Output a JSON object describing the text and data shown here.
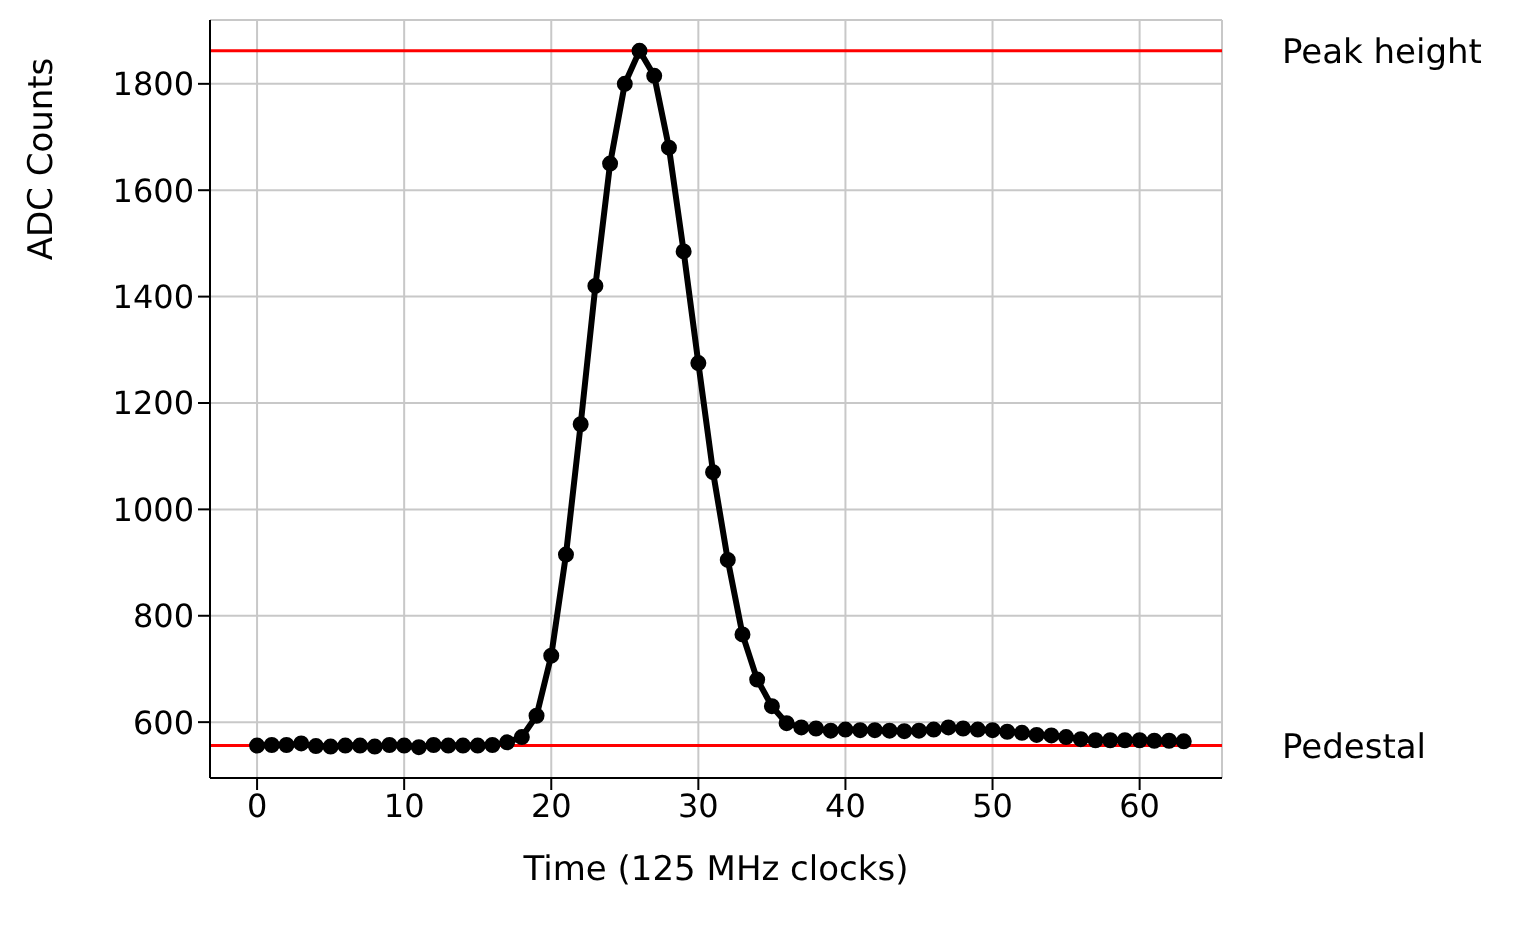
{
  "chart_data": {
    "type": "line",
    "xlabel": "Time (125 MHz clocks)",
    "ylabel": "ADC Counts",
    "x": [
      0,
      1,
      2,
      3,
      4,
      5,
      6,
      7,
      8,
      9,
      10,
      11,
      12,
      13,
      14,
      15,
      16,
      17,
      18,
      19,
      20,
      21,
      22,
      23,
      24,
      25,
      26,
      27,
      28,
      29,
      30,
      31,
      32,
      33,
      34,
      35,
      36,
      37,
      38,
      39,
      40,
      41,
      42,
      43,
      44,
      45,
      46,
      47,
      48,
      49,
      50,
      51,
      52,
      53,
      54,
      55,
      56,
      57,
      58,
      59,
      60,
      61,
      62,
      63
    ],
    "series": [
      {
        "color": "#000000",
        "values": [
          556,
          557,
          557,
          560,
          555,
          554,
          556,
          556,
          554,
          557,
          556,
          553,
          557,
          556,
          556,
          556,
          557,
          562,
          572,
          612,
          725,
          915,
          1160,
          1420,
          1650,
          1800,
          1862,
          1815,
          1680,
          1485,
          1275,
          1070,
          905,
          765,
          680,
          630,
          598,
          590,
          588,
          584,
          586,
          585,
          585,
          584,
          583,
          584,
          586,
          590,
          588,
          586,
          585,
          582,
          580,
          576,
          575,
          572,
          568,
          566,
          566,
          566,
          566,
          565,
          565,
          564
        ]
      }
    ],
    "xlim": [
      -3.2,
      65.6
    ],
    "ylim": [
      495,
      1920
    ],
    "xticks": [
      0,
      10,
      20,
      30,
      40,
      50,
      60
    ],
    "yticks": [
      600,
      800,
      1000,
      1200,
      1400,
      1600,
      1800
    ],
    "grid": true,
    "marker": "circle",
    "line_style": "solid",
    "ref_lines": [
      {
        "axis": "y",
        "value": 1862,
        "label": "Peak height",
        "color": "#ff0000"
      },
      {
        "axis": "y",
        "value": 556,
        "label": "Pedestal",
        "color": "#ff0000"
      }
    ]
  }
}
